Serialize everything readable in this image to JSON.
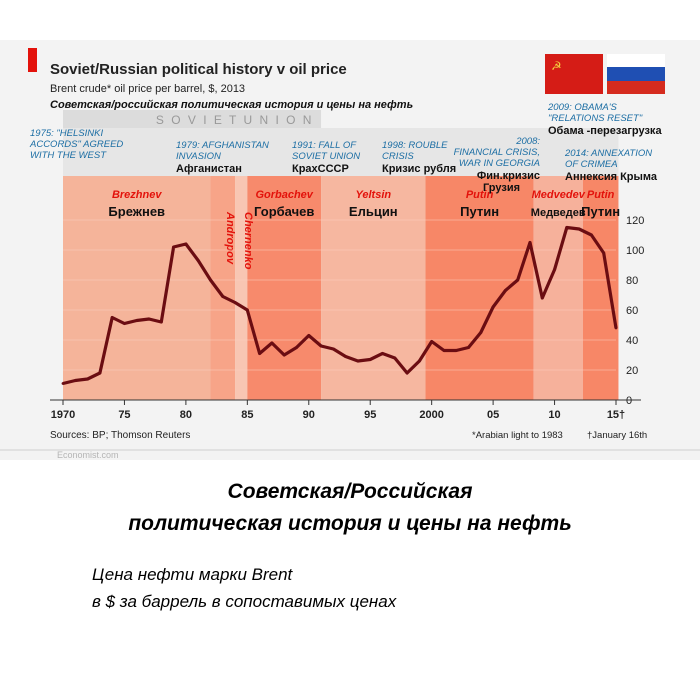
{
  "chart_data": {
    "type": "line",
    "title": "Soviet/Russian political history v oil price",
    "subtitle": "Brent crude* oil price per barrel, $, 2013",
    "subtitle_ru": "Советская/российская политическая история и цены на нефть",
    "source": "Sources: BP; Thomson Reuters",
    "footnote": "*Arabian light to 1983",
    "footnote2": "†January 16th",
    "watermark": "Economist.com",
    "soviet_union_label": "S O V I E T   U N I O N",
    "ylim": [
      0,
      120
    ],
    "y_ticks": [
      0,
      20,
      40,
      60,
      80,
      100,
      120
    ],
    "xlim": [
      1970,
      2015
    ],
    "x_ticks": [
      {
        "x": 1970,
        "label": "1970"
      },
      {
        "x": 1975,
        "label": "75"
      },
      {
        "x": 1980,
        "label": "80"
      },
      {
        "x": 1985,
        "label": "85"
      },
      {
        "x": 1990,
        "label": "90"
      },
      {
        "x": 1995,
        "label": "95"
      },
      {
        "x": 2000,
        "label": "2000"
      },
      {
        "x": 2005,
        "label": "05"
      },
      {
        "x": 2010,
        "label": "10"
      },
      {
        "x": 2015,
        "label": "15†"
      }
    ],
    "series": [
      {
        "color": "#6b0d12",
        "x": [
          1970,
          1971,
          1972,
          1973,
          1974,
          1975,
          1976,
          1977,
          1978,
          1979,
          1980,
          1981,
          1982,
          1983,
          1984,
          1985,
          1986,
          1987,
          1988,
          1989,
          1990,
          1991,
          1992,
          1993,
          1994,
          1995,
          1996,
          1997,
          1998,
          1999,
          2000,
          2001,
          2002,
          2003,
          2004,
          2005,
          2006,
          2007,
          2008,
          2009,
          2010,
          2011,
          2012,
          2013,
          2014,
          2015
        ],
        "y": [
          11,
          13,
          14,
          18,
          55,
          51,
          53,
          54,
          52,
          102,
          104,
          93,
          80,
          69,
          65,
          60,
          31,
          38,
          30,
          35,
          43,
          36,
          34,
          29,
          26,
          27,
          31,
          28,
          18,
          26,
          39,
          33,
          33,
          35,
          45,
          62,
          73,
          80,
          105,
          68,
          87,
          115,
          114,
          110,
          98,
          48
        ]
      }
    ],
    "periods": [
      {
        "start": 1970,
        "end": 1982,
        "label_en": "Brezhnev",
        "label_ru": "Брежнев",
        "color": "#f5b49a"
      },
      {
        "start": 1982,
        "end": 1984,
        "label_en": "Andropov",
        "label_ru": "",
        "color": "#f7a488"
      },
      {
        "start": 1984,
        "end": 1985,
        "label_en": "Chernenko",
        "label_ru": "",
        "color": "#f8c6b3"
      },
      {
        "start": 1985,
        "end": 1991,
        "label_en": "Gorbachev",
        "label_ru": "Горбачев",
        "color": "#f78a6c"
      },
      {
        "start": 1991,
        "end": 1999.5,
        "label_en": "Yeltsin",
        "label_ru": "Ельцин",
        "color": "#f6b7a0"
      },
      {
        "start": 1999.5,
        "end": 2008.3,
        "label_en": "Putin",
        "label_ru": "Путин",
        "color": "#f78767"
      },
      {
        "start": 2008.3,
        "end": 2012.3,
        "label_en": "Medvedev",
        "label_ru": "Медведев",
        "color": "#f6b19b"
      },
      {
        "start": 2012.3,
        "end": 2015.2,
        "label_en": "Putin",
        "label_ru": "Путин",
        "color": "#f78767"
      }
    ],
    "annotations": [
      {
        "x": 1975,
        "text_en": [
          "1975: \"HELSINKI",
          "ACCORDS\" AGREED",
          "WITH THE WEST"
        ],
        "text_ru": ""
      },
      {
        "x": 1979,
        "text_en": [
          "1979: AFGHANISTAN",
          "INVASION"
        ],
        "text_ru": "Афганистан"
      },
      {
        "x": 1991,
        "text_en": [
          "1991: FALL OF",
          "SOVIET UNION"
        ],
        "text_ru": "КрахСССР"
      },
      {
        "x": 1998,
        "text_en": [
          "1998: ROUBLE",
          "CRISIS"
        ],
        "text_ru": "Кризис рубля"
      },
      {
        "x": 2008,
        "text_en": [
          "2008:",
          "FINANCIAL CRISIS,",
          "WAR IN GEORGIA"
        ],
        "text_ru": "Фин.кризис",
        "text_ru2": "Грузия"
      },
      {
        "x": 2009,
        "text_en": [
          "2009: OBAMA'S",
          "\"RELATIONS RESET\""
        ],
        "text_ru": "Обама -перезагрузка"
      },
      {
        "x": 2014,
        "text_en": [
          "2014: ANNEXATION",
          "OF CRIMEA"
        ],
        "text_ru": "Аннексия Крыма"
      }
    ]
  },
  "caption": {
    "title_line1": "Советская/Российская",
    "title_line2": "политическая  история и цены на нефть",
    "sub_line1": "Цена нефти марки Brent",
    "sub_line2": "в  $ за баррель в сопоставимых ценах"
  }
}
